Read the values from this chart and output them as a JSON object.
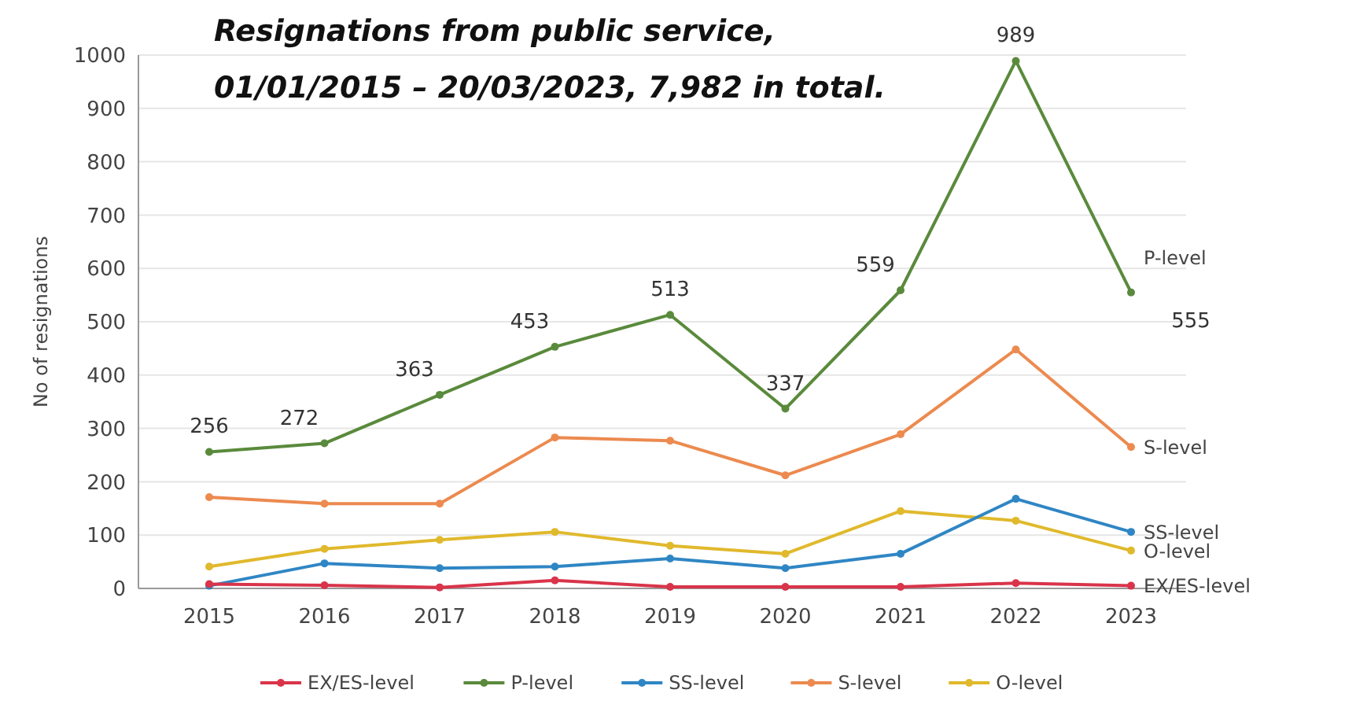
{
  "chart_data": {
    "type": "line",
    "title": "Resignations from public service,\n01/01/2015 – 20/03/2023, 7,982 in total.",
    "ylabel": "No of resignations",
    "categories": [
      "2015",
      "2016",
      "2017",
      "2018",
      "2019",
      "2020",
      "2021",
      "2022",
      "2023"
    ],
    "series": [
      {
        "name": "EX/ES-level",
        "color": "#d9344a",
        "values": [
          8,
          6,
          2,
          15,
          3,
          3,
          3,
          10,
          5
        ]
      },
      {
        "name": "P-level",
        "color": "#5a8a3c",
        "values": [
          256,
          272,
          363,
          453,
          513,
          337,
          559,
          989,
          555
        ],
        "value_labels": [
          "256",
          "272",
          "363",
          "453",
          "513",
          "337",
          "559",
          "989",
          "555"
        ]
      },
      {
        "name": "SS-level",
        "color": "#2f86c4",
        "values": [
          5,
          47,
          38,
          41,
          56,
          38,
          65,
          168,
          106
        ]
      },
      {
        "name": "S-level",
        "color": "#ec8a4f",
        "values": [
          171,
          159,
          159,
          283,
          277,
          212,
          289,
          448,
          265
        ]
      },
      {
        "name": "O-level",
        "color": "#e0b92c",
        "values": [
          41,
          74,
          91,
          106,
          80,
          65,
          145,
          127,
          71
        ]
      }
    ],
    "ylim": [
      0,
      1000
    ],
    "yticks": [
      0,
      100,
      200,
      300,
      400,
      500,
      600,
      700,
      800,
      900,
      1000
    ],
    "grid": "y",
    "legend": "bottom",
    "marker": "circle",
    "line_style": "solid"
  }
}
